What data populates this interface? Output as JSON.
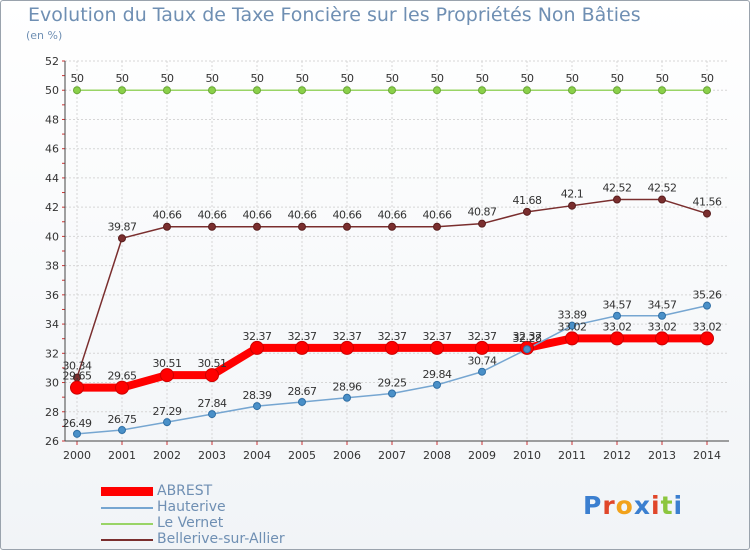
{
  "title": "Evolution du Taux de Taxe Foncière sur les Propriétés Non Bâties",
  "unit": "(en %)",
  "logo": "Proxiti",
  "colors": {
    "ABREST": "#ff0000",
    "Hauterive": "#76a6d1",
    "Le Vernet": "#99d466",
    "Bellerive-sur-Allier": "#7a2e2e",
    "axis_text": "#333333",
    "title": "#6f8fb3"
  },
  "chart_data": {
    "type": "line",
    "title": "Evolution du Taux de Taxe Foncière sur les Propriétés Non Bâties",
    "ylabel": "(en %)",
    "x": [
      "2000",
      "2001",
      "2002",
      "2003",
      "2004",
      "2005",
      "2006",
      "2007",
      "2008",
      "2009",
      "2010",
      "2011",
      "2012",
      "2013",
      "2014"
    ],
    "ylim": [
      26,
      52
    ],
    "yticks": [
      26,
      28,
      30,
      32,
      34,
      36,
      38,
      40,
      42,
      44,
      46,
      48,
      50,
      52
    ],
    "grid": true,
    "legend": "bottom-left",
    "series": [
      {
        "name": "ABREST",
        "values": [
          29.65,
          29.65,
          30.51,
          30.51,
          32.37,
          32.37,
          32.37,
          32.37,
          32.37,
          32.37,
          32.37,
          33.02,
          33.02,
          33.02,
          33.02
        ],
        "labels": [
          "29.65",
          "29.65",
          "30.51",
          "30.51",
          "32.37",
          "32.37",
          "32.37",
          "32.37",
          "32.37",
          "32.37",
          "32.37",
          "33.02",
          "33.02",
          "33.02",
          "33.02"
        ]
      },
      {
        "name": "Hauterive",
        "values": [
          26.49,
          26.75,
          27.29,
          27.84,
          28.39,
          28.67,
          28.96,
          29.25,
          29.84,
          30.74,
          32.28,
          33.89,
          34.57,
          34.57,
          35.26
        ],
        "labels": [
          "26.49",
          "26.75",
          "27.29",
          "27.84",
          "28.39",
          "28.67",
          "28.96",
          "29.25",
          "29.84",
          "30.74",
          "32.28",
          "33.89",
          "34.57",
          "34.57",
          "35.26"
        ]
      },
      {
        "name": "Le Vernet",
        "values": [
          50,
          50,
          50,
          50,
          50,
          50,
          50,
          50,
          50,
          50,
          50,
          50,
          50,
          50,
          50
        ],
        "labels": [
          "50",
          "50",
          "50",
          "50",
          "50",
          "50",
          "50",
          "50",
          "50",
          "50",
          "50",
          "50",
          "50",
          "50",
          "50"
        ]
      },
      {
        "name": "Bellerive-sur-Allier",
        "values": [
          30.34,
          39.87,
          40.66,
          40.66,
          40.66,
          40.66,
          40.66,
          40.66,
          40.66,
          40.87,
          41.68,
          42.1,
          42.52,
          42.52,
          41.56
        ],
        "labels": [
          "30.34",
          "39.87",
          "40.66",
          "40.66",
          "40.66",
          "40.66",
          "40.66",
          "40.66",
          "40.66",
          "40.87",
          "41.68",
          "42.1",
          "42.52",
          "42.52",
          "41.56"
        ]
      }
    ]
  }
}
